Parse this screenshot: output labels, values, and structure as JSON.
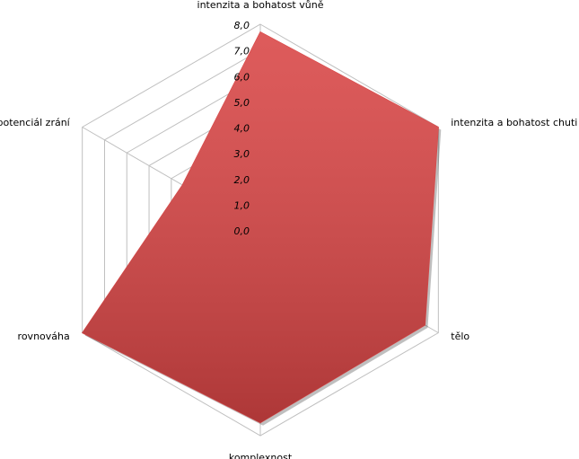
{
  "chart_data": {
    "type": "radar",
    "categories": [
      "intenzita a bohatost  vůně",
      "intenzita a bohatost  chuti",
      "tělo",
      "komplexnost",
      "rovnováha",
      "potenciál zrání"
    ],
    "values": [
      7.7,
      8.0,
      7.4,
      7.5,
      8.0,
      3.5
    ],
    "color": "#d94545",
    "rlim": [
      0,
      8
    ],
    "rticks": [
      {
        "value": 0,
        "label": "0,0"
      },
      {
        "value": 1,
        "label": "1,0"
      },
      {
        "value": 2,
        "label": "2,0"
      },
      {
        "value": 3,
        "label": "3,0"
      },
      {
        "value": 4,
        "label": "4,0"
      },
      {
        "value": 5,
        "label": "5,0"
      },
      {
        "value": 6,
        "label": "6,0"
      },
      {
        "value": 7,
        "label": "7,0"
      },
      {
        "value": 8,
        "label": "8,0"
      }
    ],
    "grid": true
  }
}
